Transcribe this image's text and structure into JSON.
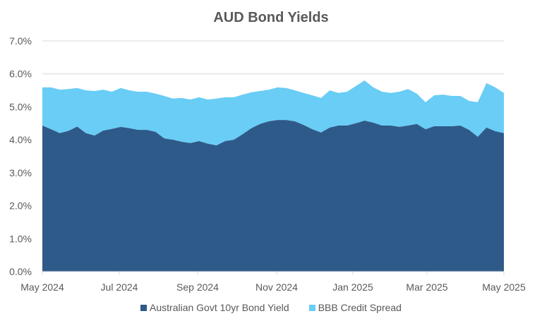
{
  "chart_data": {
    "type": "area",
    "stacked": true,
    "title": "AUD Bond Yields",
    "xlabel": "",
    "ylabel": "",
    "ylim": [
      0,
      7
    ],
    "yticks": [
      "0.0%",
      "1.0%",
      "2.0%",
      "3.0%",
      "4.0%",
      "5.0%",
      "6.0%",
      "7.0%"
    ],
    "xticks": [
      "May 2024",
      "Jul 2024",
      "Sep 2024",
      "Nov 2024",
      "Jan 2025",
      "Mar 2025",
      "May 2025"
    ],
    "grid": "horizontal",
    "legend_position": "bottom",
    "x_range": [
      "May 2024",
      "May 2025"
    ],
    "series": [
      {
        "name": "Australian Govt 10yr Bond Yield",
        "color": "#2e5a8a",
        "values": [
          4.43,
          4.32,
          4.2,
          4.27,
          4.4,
          4.2,
          4.13,
          4.28,
          4.33,
          4.39,
          4.35,
          4.3,
          4.3,
          4.24,
          4.04,
          4.0,
          3.94,
          3.9,
          3.96,
          3.88,
          3.83,
          3.96,
          4.0,
          4.17,
          4.35,
          4.48,
          4.56,
          4.6,
          4.6,
          4.56,
          4.45,
          4.32,
          4.22,
          4.37,
          4.43,
          4.43,
          4.5,
          4.58,
          4.52,
          4.43,
          4.43,
          4.39,
          4.43,
          4.48,
          4.32,
          4.41,
          4.41,
          4.41,
          4.43,
          4.3,
          4.09,
          4.37,
          4.26,
          4.2
        ]
      },
      {
        "name": "BBB Credit Spread",
        "color": "#69cdf5",
        "values": [
          1.16,
          1.27,
          1.32,
          1.27,
          1.17,
          1.3,
          1.35,
          1.24,
          1.13,
          1.18,
          1.15,
          1.16,
          1.16,
          1.16,
          1.29,
          1.25,
          1.33,
          1.32,
          1.33,
          1.34,
          1.42,
          1.33,
          1.29,
          1.2,
          1.09,
          1.0,
          0.96,
          0.99,
          0.97,
          0.94,
          0.97,
          1.03,
          1.05,
          1.13,
          0.99,
          1.03,
          1.13,
          1.22,
          1.07,
          1.03,
          0.99,
          1.07,
          1.11,
          0.92,
          0.82,
          0.94,
          0.96,
          0.92,
          0.9,
          0.88,
          1.05,
          1.35,
          1.33,
          1.22
        ]
      }
    ]
  },
  "legend": {
    "items": [
      {
        "label": "Australian Govt 10yr Bond Yield",
        "color": "#2e5a8a"
      },
      {
        "label": "BBB Credit Spread",
        "color": "#69cdf5"
      }
    ]
  }
}
